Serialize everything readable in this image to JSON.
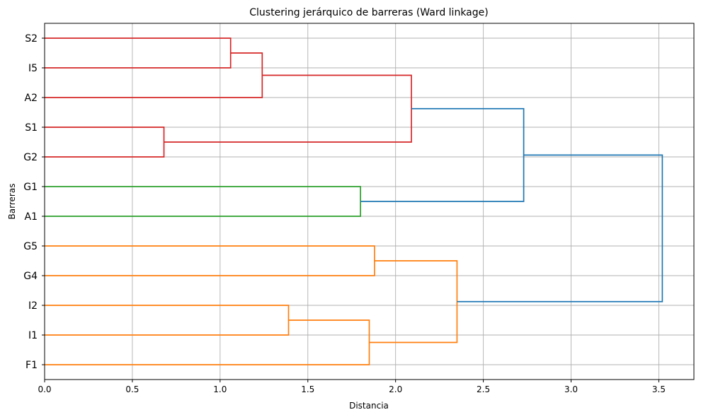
{
  "chart_data": {
    "type": "dendrogram",
    "orientation": "right",
    "title": "Clustering jerárquico de barreras (Ward linkage)",
    "xlabel": "Distancia",
    "ylabel": "Barreras",
    "xlim": [
      0,
      3.7
    ],
    "xticks": [
      0.0,
      0.5,
      1.0,
      1.5,
      2.0,
      2.5,
      3.0,
      3.5
    ],
    "xtick_labels": [
      "0.0",
      "0.5",
      "1.0",
      "1.5",
      "2.0",
      "2.5",
      "3.0",
      "3.5"
    ],
    "grid": true,
    "leaves": [
      "S2",
      "I5",
      "A2",
      "S1",
      "G2",
      "G1",
      "A1",
      "G5",
      "G4",
      "I2",
      "I1",
      "F1"
    ],
    "colors": {
      "red": "#d62728",
      "green": "#2ca02c",
      "orange": "#ff7f0e",
      "blue": "#1f77b4"
    },
    "merges": [
      {
        "id": "c1",
        "children": [
          "S2",
          "I5"
        ],
        "distance": 1.06,
        "color": "red"
      },
      {
        "id": "c2",
        "children": [
          "c1",
          "A2"
        ],
        "distance": 1.24,
        "color": "red"
      },
      {
        "id": "c3",
        "children": [
          "S1",
          "G2"
        ],
        "distance": 0.68,
        "color": "red"
      },
      {
        "id": "c4",
        "children": [
          "c2",
          "c3"
        ],
        "distance": 2.09,
        "color": "red"
      },
      {
        "id": "c5",
        "children": [
          "G1",
          "A1"
        ],
        "distance": 1.8,
        "color": "green"
      },
      {
        "id": "c6",
        "children": [
          "c4",
          "c5"
        ],
        "distance": 2.73,
        "color": "blue"
      },
      {
        "id": "c7",
        "children": [
          "G5",
          "G4"
        ],
        "distance": 1.88,
        "color": "orange"
      },
      {
        "id": "c8",
        "children": [
          "I2",
          "I1"
        ],
        "distance": 1.39,
        "color": "orange"
      },
      {
        "id": "c9",
        "children": [
          "c8",
          "F1"
        ],
        "distance": 1.85,
        "color": "orange"
      },
      {
        "id": "c10",
        "children": [
          "c7",
          "c9"
        ],
        "distance": 2.35,
        "color": "orange"
      },
      {
        "id": "c11",
        "children": [
          "c6",
          "c10"
        ],
        "distance": 3.52,
        "color": "blue"
      }
    ]
  }
}
